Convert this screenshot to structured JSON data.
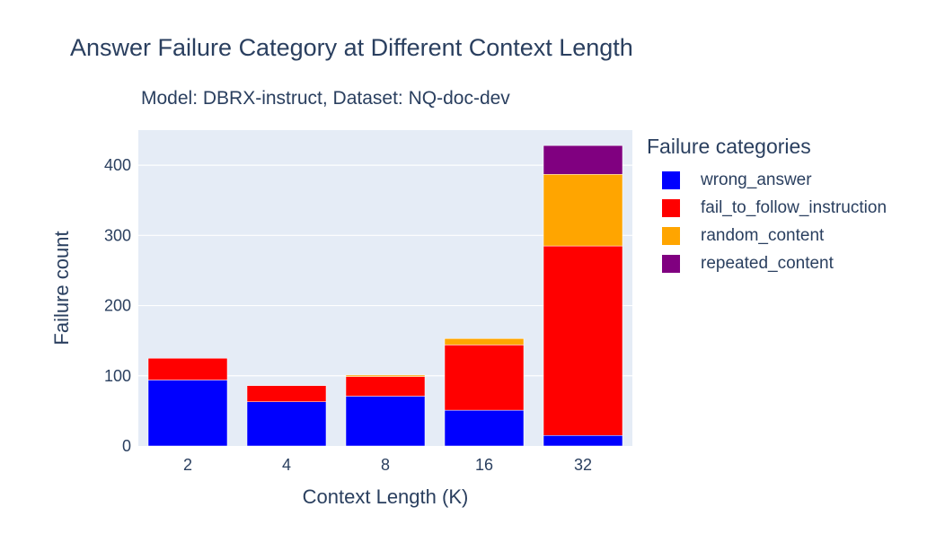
{
  "chart_data": {
    "type": "bar",
    "stacked": true,
    "title": "Answer Failure Category at Different Context Length",
    "subtitle": "Model: DBRX-instruct, Dataset: NQ-doc-dev",
    "xlabel": "Context Length (K)",
    "ylabel": "Failure count",
    "categories": [
      "2",
      "4",
      "8",
      "16",
      "32"
    ],
    "ylim": [
      0,
      450
    ],
    "yticks": [
      0,
      100,
      200,
      300,
      400
    ],
    "grid": true,
    "background_color": "#e5ecf6",
    "legend_title": "Failure categories",
    "legend_position": "right",
    "series": [
      {
        "name": "wrong_answer",
        "color": "#0000ff",
        "values": [
          94,
          63,
          71,
          51,
          15
        ]
      },
      {
        "name": "fail_to_follow_instruction",
        "color": "#ff0000",
        "values": [
          31,
          23,
          28,
          93,
          270
        ]
      },
      {
        "name": "random_content",
        "color": "#ffa500",
        "values": [
          0,
          0,
          2,
          9,
          102
        ]
      },
      {
        "name": "repeated_content",
        "color": "#800080",
        "values": [
          0,
          0,
          0,
          0,
          41
        ]
      }
    ]
  }
}
